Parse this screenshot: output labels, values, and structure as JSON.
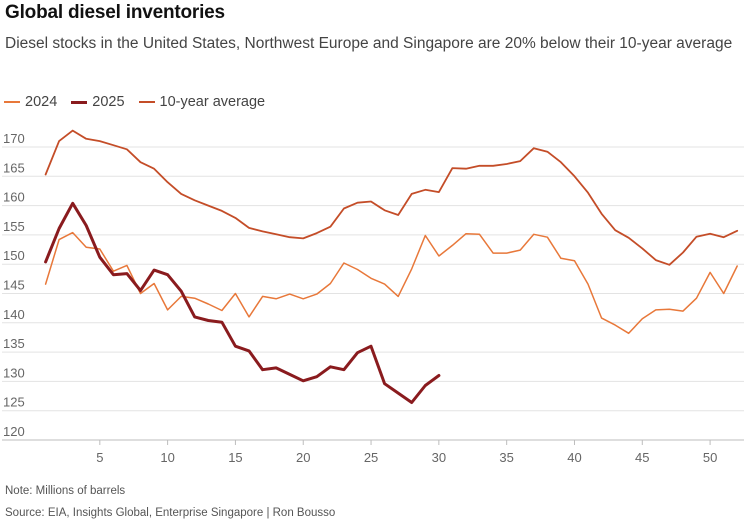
{
  "chart_data": {
    "type": "line",
    "title": "Global diesel inventories",
    "subtitle": "Diesel stocks in the United States, Northwest Europe and Singapore are 20% below their 10-year average",
    "xlabel": "",
    "ylabel": "",
    "xlim": [
      0,
      52.5
    ],
    "ylim": [
      120,
      173
    ],
    "x_ticks": [
      5,
      10,
      15,
      20,
      25,
      30,
      35,
      40,
      45,
      50
    ],
    "y_ticks": [
      120,
      125,
      130,
      135,
      140,
      145,
      150,
      155,
      160,
      165,
      170
    ],
    "grid": "horizontal",
    "legend": "top-left",
    "series": [
      {
        "name": "2024",
        "color": "#e8783a",
        "width": 1.5,
        "x": [
          1,
          2,
          3,
          4,
          5,
          6,
          7,
          8,
          9,
          10,
          11,
          12,
          13,
          14,
          15,
          16,
          17,
          18,
          19,
          20,
          21,
          22,
          23,
          24,
          25,
          26,
          27,
          28,
          29,
          30,
          31,
          32,
          33,
          34,
          35,
          36,
          37,
          38,
          39,
          40,
          41,
          42,
          43,
          44,
          45,
          46,
          47,
          48,
          49,
          50,
          51,
          52
        ],
        "values": [
          146.6,
          154.2,
          155.4,
          152.9,
          152.6,
          148.8,
          149.8,
          145.0,
          146.7,
          142.2,
          144.5,
          144.2,
          143.2,
          142.1,
          145.0,
          141.0,
          144.5,
          144.1,
          144.9,
          144.1,
          144.9,
          146.7,
          150.2,
          149.1,
          147.6,
          146.6,
          144.5,
          149.2,
          154.9,
          151.4,
          153.2,
          155.2,
          155.1,
          151.9,
          151.9,
          152.4,
          155.1,
          154.6,
          151.0,
          150.6,
          146.6,
          140.8,
          139.6,
          138.2,
          140.7,
          142.2,
          142.3,
          142.0,
          144.2,
          148.6,
          145.0,
          149.7
        ]
      },
      {
        "name": "2025",
        "color": "#8a1b1e",
        "width": 3,
        "x": [
          1,
          2,
          3,
          4,
          5,
          6,
          7,
          8,
          9,
          10,
          11,
          12,
          13,
          14,
          15,
          16,
          17,
          18,
          19,
          20,
          21,
          22,
          23,
          24,
          25,
          26,
          27,
          28,
          29,
          30
        ],
        "values": [
          150.4,
          156.1,
          160.4,
          156.6,
          151.2,
          148.2,
          148.4,
          145.5,
          149.0,
          148.2,
          145.4,
          141.0,
          140.4,
          140.1,
          136.0,
          135.2,
          132.0,
          132.3,
          131.2,
          130.1,
          130.8,
          132.5,
          132.0,
          134.9,
          136.0,
          129.6,
          128.0,
          126.4,
          129.3,
          131.0
        ]
      },
      {
        "name": "10-year average",
        "color": "#c44d28",
        "width": 1.8,
        "x": [
          1,
          2,
          3,
          4,
          5,
          6,
          7,
          8,
          9,
          10,
          11,
          12,
          13,
          14,
          15,
          16,
          17,
          18,
          19,
          20,
          21,
          22,
          23,
          24,
          25,
          26,
          27,
          28,
          29,
          30,
          31,
          32,
          33,
          34,
          35,
          36,
          37,
          38,
          39,
          40,
          41,
          42,
          43,
          44,
          45,
          46,
          47,
          48,
          49,
          50,
          51,
          52
        ],
        "values": [
          165.3,
          171.0,
          172.8,
          171.4,
          171.0,
          170.3,
          169.6,
          167.4,
          166.3,
          164.0,
          162.0,
          160.9,
          160.0,
          159.1,
          157.9,
          156.2,
          155.6,
          155.1,
          154.6,
          154.4,
          155.3,
          156.4,
          159.5,
          160.5,
          160.7,
          159.2,
          158.4,
          162.0,
          162.7,
          162.3,
          166.4,
          166.3,
          166.8,
          166.8,
          167.1,
          167.6,
          169.8,
          169.2,
          167.4,
          165.0,
          162.2,
          158.6,
          155.8,
          154.5,
          152.7,
          150.7,
          149.9,
          152.0,
          154.7,
          155.2,
          154.6,
          155.7
        ]
      }
    ]
  },
  "note": "Note: Millions of barrels",
  "source": "Source: EIA, Insights Global, Enterprise Singapore | Ron Bousso"
}
